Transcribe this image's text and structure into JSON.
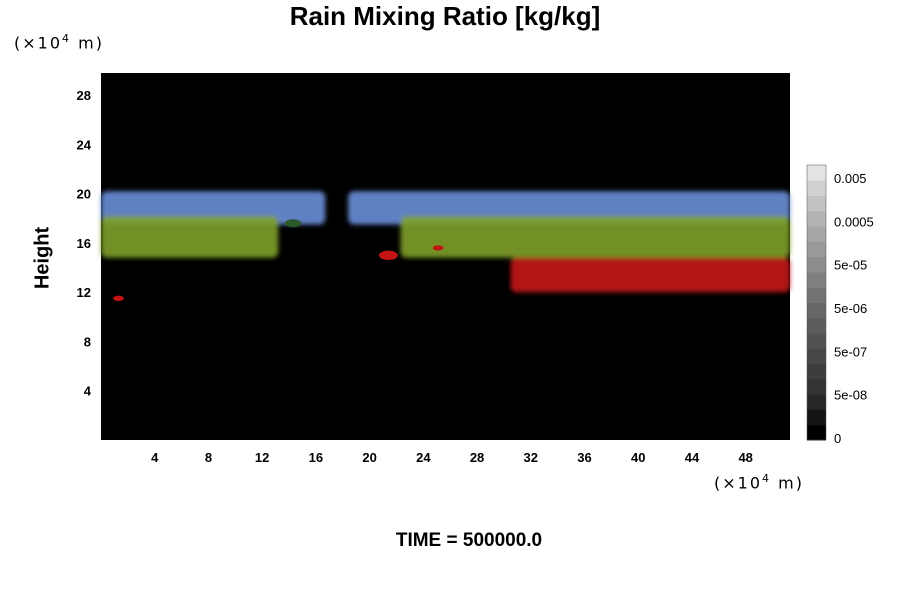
{
  "title": "Rain Mixing Ratio [kg/kg]",
  "y_unit": {
    "pre": "(×10",
    "exp": "4",
    "post": " m)"
  },
  "x_unit": {
    "pre": "(×10",
    "exp": "4",
    "post": " m)"
  },
  "ylabel": "Height",
  "time_label": "TIME = 500000.0",
  "chart_data": {
    "type": "heatmap",
    "title": "Rain Mixing Ratio [kg/kg]",
    "xlabel": "",
    "ylabel": "Height",
    "x_unit": "×10^4 m",
    "y_unit": "×10^4 m",
    "xlim": [
      0,
      51.3
    ],
    "ylim": [
      0,
      29.8
    ],
    "x_ticks": [
      4,
      8,
      12,
      16,
      20,
      24,
      28,
      32,
      36,
      40,
      44,
      48
    ],
    "y_ticks": [
      4,
      8,
      12,
      16,
      20,
      24,
      28
    ],
    "background": "#000000",
    "colorbar": {
      "labels": [
        "0.005",
        "0.0005",
        "5e-05",
        "5e-06",
        "5e-07",
        "5e-08",
        "0"
      ],
      "colors": [
        "#000000",
        "#141414",
        "#262626",
        "#333333",
        "#3d3d3d",
        "#474747",
        "#525252",
        "#5c5c5c",
        "#666666",
        "#737373",
        "#808080",
        "#8c8c8c",
        "#999999",
        "#a6a6a6",
        "#b3b3b3",
        "#c2c2c2",
        "#d1d1d1",
        "#e3e3e3"
      ]
    },
    "layers": [
      {
        "color": "#6a8fd8",
        "y_range": [
          17.5,
          20.2
        ],
        "spans": [
          [
            0,
            16.7
          ],
          [
            18.4,
            51.3
          ]
        ]
      },
      {
        "color": "#7fa028",
        "y_range": [
          14.8,
          18.2
        ],
        "spans": [
          [
            0,
            13.2
          ],
          [
            22.3,
            51.3
          ]
        ]
      },
      {
        "color": "#c41414",
        "y_range": [
          12.0,
          14.8
        ],
        "spans": [
          [
            30.5,
            51.3
          ]
        ]
      }
    ],
    "blobs": [
      {
        "color": "#c41414",
        "x": 1.3,
        "y": 11.5,
        "r": 0.4
      },
      {
        "color": "#c41414",
        "x": 21.4,
        "y": 15.0,
        "r": 0.7
      },
      {
        "color": "#c41414",
        "x": 25.1,
        "y": 15.6,
        "r": 0.4
      },
      {
        "color": "#2a5a2a",
        "x": 14.3,
        "y": 17.6,
        "r": 0.6
      }
    ]
  }
}
